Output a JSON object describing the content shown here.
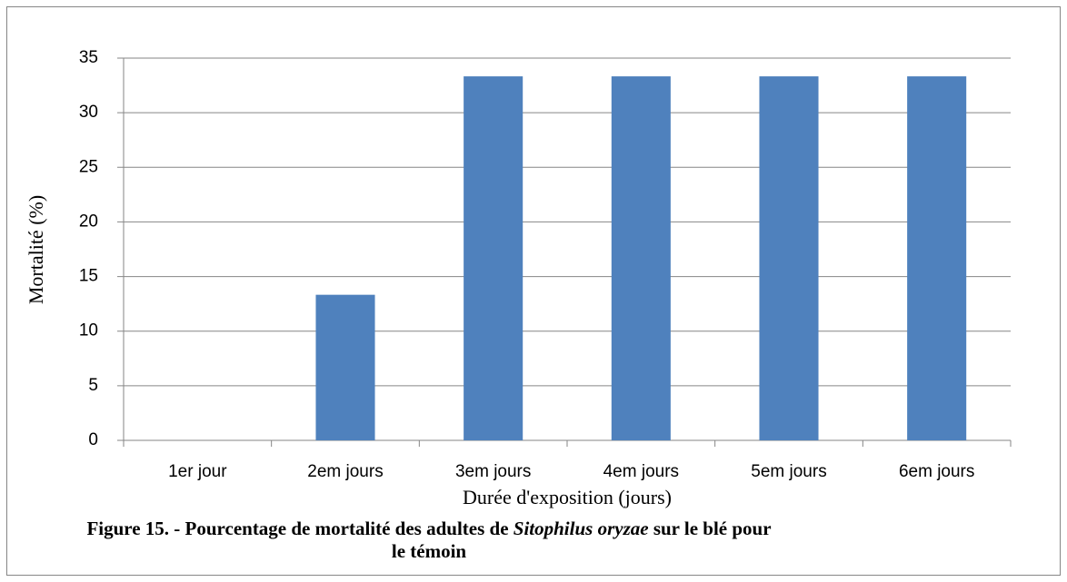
{
  "chart_data": {
    "type": "bar",
    "categories": [
      "1er jour",
      "2em jours",
      "3em jours",
      "4em jours",
      "5em jours",
      "6em jours"
    ],
    "values": [
      0,
      13.33,
      33.33,
      33.33,
      33.33,
      33.33
    ],
    "color": "#4f81bd",
    "ylim": [
      0,
      35
    ],
    "yticks": [
      0,
      5,
      10,
      15,
      20,
      25,
      30,
      35
    ],
    "grid": true,
    "ylabel": "Mortalité (%)",
    "xlabel": "Durée d'exposition (jours)",
    "caption": [
      "Figure 15. - Pourcentage de mortalité des adultes de",
      "Sitophilus oryzae",
      "sur le blé pour le témoin"
    ]
  }
}
